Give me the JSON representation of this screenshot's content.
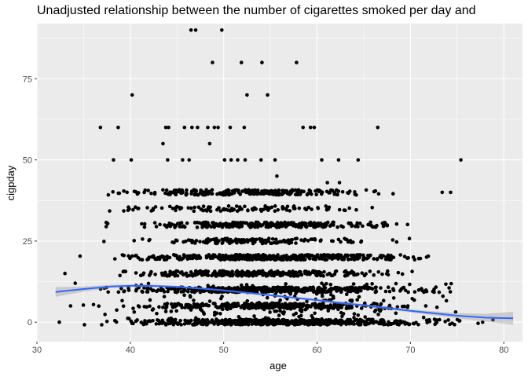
{
  "chart_data": {
    "type": "scatter",
    "title": "Unadjusted relationship between the number of cigarettes smoked per day and",
    "xlabel": "age",
    "ylabel": "cigpday",
    "xlim": [
      30,
      82
    ],
    "ylim": [
      -6,
      92
    ],
    "x_ticks": [
      30,
      40,
      50,
      60,
      70,
      80
    ],
    "y_ticks": [
      0,
      25,
      50,
      75
    ],
    "grid": true,
    "series": [
      {
        "marker": "point",
        "color": "#000000",
        "points": [
          [
            46.5,
            90
          ],
          [
            47.0,
            90
          ],
          [
            49.8,
            90
          ],
          [
            48.8,
            80
          ],
          [
            51.9,
            80
          ],
          [
            54.1,
            80
          ],
          [
            57.8,
            80
          ],
          [
            40.2,
            70
          ],
          [
            52.5,
            70
          ],
          [
            54.7,
            70
          ],
          [
            36.8,
            60
          ],
          [
            38.7,
            60
          ],
          [
            43.8,
            60
          ],
          [
            44.1,
            60
          ],
          [
            45.8,
            60
          ],
          [
            46.6,
            60
          ],
          [
            47.2,
            60
          ],
          [
            48.3,
            60
          ],
          [
            49.0,
            60
          ],
          [
            49.4,
            60
          ],
          [
            50.7,
            60
          ],
          [
            52.2,
            60
          ],
          [
            58.5,
            60
          ],
          [
            59.3,
            60
          ],
          [
            59.7,
            60
          ],
          [
            66.5,
            60
          ],
          [
            43.5,
            55
          ],
          [
            48.5,
            55
          ],
          [
            38.2,
            50
          ],
          [
            40.1,
            50
          ],
          [
            44.0,
            50
          ],
          [
            45.6,
            50
          ],
          [
            46.3,
            50
          ],
          [
            50.1,
            50
          ],
          [
            50.8,
            50
          ],
          [
            51.5,
            50
          ],
          [
            52.3,
            50
          ],
          [
            54.0,
            50
          ],
          [
            55.5,
            50
          ],
          [
            60.5,
            50
          ],
          [
            62.3,
            50
          ],
          [
            64.4,
            50
          ],
          [
            75.4,
            50
          ],
          [
            61.1,
            43
          ],
          [
            62.4,
            43
          ],
          [
            55.7,
            45
          ],
          [
            73.4,
            40
          ],
          [
            74.3,
            40
          ],
          [
            33.0,
            15
          ],
          [
            34.1,
            12
          ],
          [
            33.6,
            5
          ],
          [
            32.4,
            0
          ]
        ],
        "bands": [
          {
            "y": 40,
            "x_min": 34.0,
            "x_max": 72.0,
            "count": 240
          },
          {
            "y": 35,
            "x_min": 35.0,
            "x_max": 70.0,
            "count": 110
          },
          {
            "y": 30,
            "x_min": 35.0,
            "x_max": 74.5,
            "count": 280
          },
          {
            "y": 25,
            "x_min": 35.5,
            "x_max": 72.0,
            "count": 140
          },
          {
            "y": 20,
            "x_min": 33.5,
            "x_max": 77.5,
            "count": 380
          },
          {
            "y": 15,
            "x_min": 34.5,
            "x_max": 73.0,
            "count": 300
          },
          {
            "y": 10,
            "x_min": 33.8,
            "x_max": 76.0,
            "count": 420
          },
          {
            "y": 5,
            "x_min": 34.0,
            "x_max": 74.0,
            "count": 260
          },
          {
            "y": 0,
            "x_min": 33.0,
            "x_max": 81.0,
            "count": 520
          }
        ]
      },
      {
        "type": "line",
        "fit": "loess",
        "color": "#3366FF",
        "ribbon_color": "#999999",
        "x": [
          32,
          35,
          38,
          40,
          42,
          45,
          48,
          50,
          52,
          55,
          58,
          60,
          62,
          65,
          68,
          70,
          72,
          75,
          78,
          81
        ],
        "y": [
          9.3,
          10.2,
          11.0,
          11.2,
          11.2,
          10.9,
          10.3,
          9.8,
          9.2,
          8.3,
          7.4,
          6.8,
          6.1,
          5.2,
          4.2,
          3.5,
          2.9,
          2.0,
          1.4,
          1.2
        ],
        "lower": [
          7.8,
          9.4,
          10.5,
          10.8,
          10.8,
          10.6,
          10.0,
          9.5,
          8.9,
          8.0,
          7.1,
          6.4,
          5.7,
          4.8,
          3.7,
          3.0,
          2.3,
          1.2,
          0.2,
          -0.8
        ],
        "upper": [
          10.8,
          11.0,
          11.5,
          11.6,
          11.6,
          11.2,
          10.6,
          10.1,
          9.5,
          8.6,
          7.7,
          7.2,
          6.5,
          5.6,
          4.7,
          4.0,
          3.5,
          2.8,
          2.6,
          3.2
        ]
      }
    ]
  }
}
